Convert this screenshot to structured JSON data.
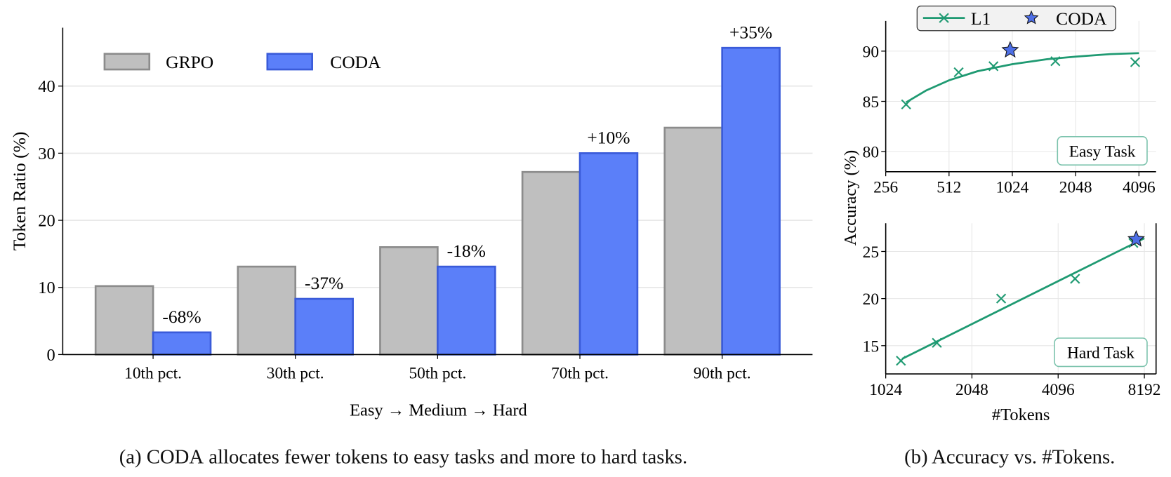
{
  "colors": {
    "grpo_fill": "#bfbfbf",
    "grpo_edge": "#8c8c8c",
    "coda_fill": "#5b7ff9",
    "coda_edge": "#3a5bd9",
    "l1_line": "#1f9a72",
    "star_fill": "#4e6fe6",
    "annotation_box_edge": "#7cc3ad",
    "grid": "#e6e6e6",
    "legend_bg": "#f2f2f2"
  },
  "captions": {
    "a": {
      "prefix": "(a) ",
      "name": "CODA",
      "rest": " allocates fewer tokens to easy tasks and more to hard tasks."
    },
    "b": {
      "text": "(b) Accuracy vs. #Tokens."
    }
  },
  "chart_data": [
    {
      "type": "bar",
      "categories": [
        "10th pct.",
        "30th pct.",
        "50th pct.",
        "70th pct.",
        "90th pct."
      ],
      "series": [
        {
          "name": "GRPO",
          "values": [
            10.2,
            13.1,
            16.0,
            27.2,
            33.8
          ]
        },
        {
          "name": "CODA",
          "values": [
            3.3,
            8.3,
            13.1,
            30.0,
            45.7
          ]
        }
      ],
      "annotations": [
        "-68%",
        "-37%",
        "-18%",
        "+10%",
        "+35%"
      ],
      "xlabel": "Easy → Medium → Hard",
      "ylabel": "Token Ratio (%)",
      "yticks": [
        0,
        10,
        20,
        30,
        40
      ],
      "ylim": [
        0,
        48.7
      ],
      "grid": "y",
      "legend": "top-left"
    },
    {
      "type": "line",
      "annotation": "Easy Task",
      "xscale": "log2",
      "xticks": [
        256,
        512,
        1024,
        2048,
        4096
      ],
      "xlim": [
        256,
        4940
      ],
      "yticks": [
        80,
        85,
        90
      ],
      "ylim": [
        78,
        93
      ],
      "grid": "both",
      "ylabel": "Accuracy (%)",
      "legend": {
        "position": "top-center",
        "entries": [
          "L1",
          "CODA"
        ]
      },
      "series": [
        {
          "name": "L1",
          "marker": "x",
          "points": [
            [
              320,
              84.7
            ],
            [
              569,
              87.9
            ],
            [
              833,
              88.5
            ],
            [
              1641,
              89.0
            ],
            [
              3930,
              88.9
            ]
          ],
          "fit": [
            [
              320,
              84.9
            ],
            [
              400,
              86.1
            ],
            [
              512,
              87.1
            ],
            [
              700,
              88.0
            ],
            [
              1024,
              88.7
            ],
            [
              1500,
              89.2
            ],
            [
              2048,
              89.45
            ],
            [
              3000,
              89.7
            ],
            [
              4096,
              89.8
            ]
          ]
        },
        {
          "name": "CODA",
          "marker": "star",
          "points": [
            [
              1000,
              90.1
            ]
          ]
        }
      ]
    },
    {
      "type": "line",
      "annotation": "Hard Task",
      "xscale": "log2",
      "xticks": [
        1024,
        2048,
        4096,
        8192
      ],
      "xlim": [
        1024,
        9000
      ],
      "yticks": [
        15,
        20,
        25
      ],
      "ylim": [
        12,
        28
      ],
      "grid": "both",
      "xlabel": "#Tokens",
      "series": [
        {
          "name": "L1",
          "marker": "x",
          "points": [
            [
              1157,
              13.4
            ],
            [
              1545,
              15.3
            ],
            [
              2590,
              20.0
            ],
            [
              4692,
              22.1
            ],
            [
              7500,
              25.9
            ]
          ],
          "fit": [
            [
              1167,
              13.6
            ],
            [
              8192,
              26.4
            ]
          ]
        },
        {
          "name": "CODA",
          "marker": "star",
          "points": [
            [
              7670,
              26.3
            ]
          ]
        }
      ]
    }
  ]
}
